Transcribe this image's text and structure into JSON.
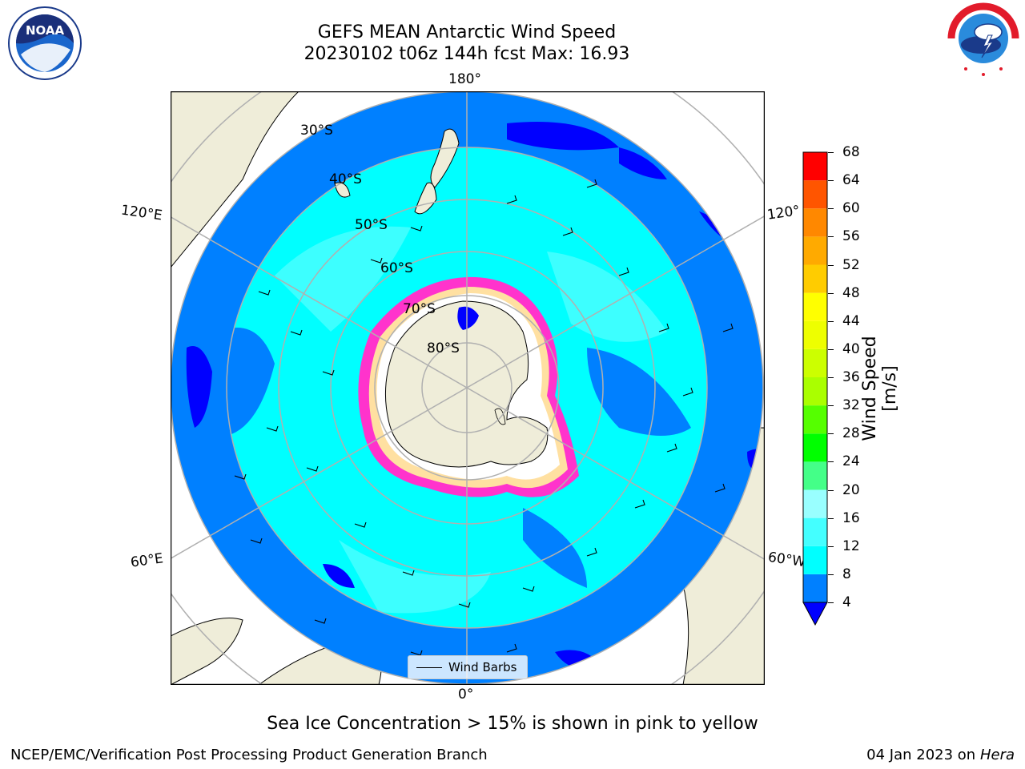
{
  "header": {
    "title_line1": "GEFS MEAN Antarctic Wind Speed",
    "title_line2": "20230102 t06z 144h fcst   Max: 16.93"
  },
  "logos": {
    "left": {
      "text": "NOAA",
      "icon": "noaa-logo"
    },
    "right": {
      "icon": "national-weather-service-logo"
    }
  },
  "map": {
    "longitude_labels": {
      "top": "180°",
      "bottom": "0°",
      "left_upper": "120°E",
      "left_lower": "60°E",
      "right_upper": "120°",
      "right_lower": "60°W"
    },
    "latitude_labels": [
      "30°S",
      "40°S",
      "50°S",
      "60°S",
      "70°S",
      "80°S"
    ],
    "legend_label": "Wind Barbs",
    "colors": {
      "land": "#efedd9",
      "ocean_low": "#0080ff",
      "ocean_mid": "#00ffff",
      "ocean_high": "#00ccff",
      "calm": "#0000ff",
      "ice_pink": "#ff33cc",
      "ice_yellow": "#ffff66",
      "grid": "#b0b0b0"
    }
  },
  "colorbar": {
    "label": "Wind Speed [m/s]",
    "ticks": [
      "4",
      "8",
      "12",
      "16",
      "20",
      "24",
      "28",
      "32",
      "36",
      "40",
      "44",
      "48",
      "52",
      "56",
      "60",
      "64",
      "68"
    ],
    "colors": [
      "#0080ff",
      "#00ffff",
      "#44ffff",
      "#99ffff",
      "#44ff88",
      "#00ff00",
      "#55ff00",
      "#aaff00",
      "#ccff00",
      "#eeff00",
      "#ffff00",
      "#ffcc00",
      "#ffaa00",
      "#ff8800",
      "#ff5500",
      "#ff0000"
    ],
    "extend_color": "#0000ff"
  },
  "caption": "Sea Ice Concentration > 15% is shown in pink to yellow",
  "footer": {
    "left": "NCEP/EMC/Verification Post Processing Product Generation Branch",
    "right_date": "04 Jan 2023 on ",
    "right_host": "Hera"
  }
}
